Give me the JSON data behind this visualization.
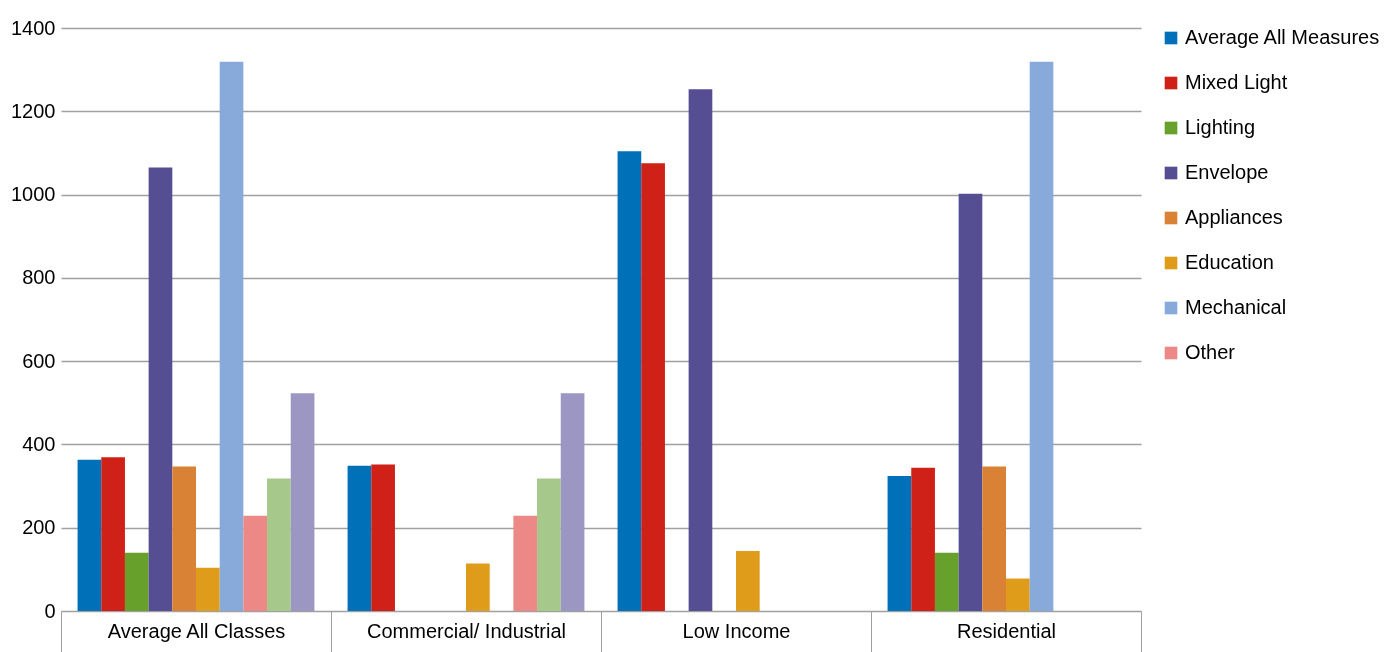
{
  "chart_data": {
    "type": "bar",
    "categories": [
      "Average All Classes",
      "Commercial/ Industrial",
      "Low Income",
      "Residential"
    ],
    "series": [
      {
        "name": "Average All Measures",
        "color": "#0070b8",
        "values": [
          363,
          349,
          1104,
          324
        ]
      },
      {
        "name": "Mixed Light",
        "color": "#cf2118",
        "values": [
          369,
          352,
          1075,
          344
        ]
      },
      {
        "name": "Lighting",
        "color": "#67a02b",
        "values": [
          140,
          null,
          null,
          140
        ]
      },
      {
        "name": "Envelope",
        "color": "#554e93",
        "values": [
          1065,
          null,
          1253,
          1002
        ]
      },
      {
        "name": "Appliances",
        "color": "#d98235",
        "values": [
          347,
          null,
          null,
          347
        ]
      },
      {
        "name": "Education",
        "color": "#df9b1a",
        "values": [
          104,
          114,
          144,
          78
        ]
      },
      {
        "name": "Mechanical",
        "color": "#87aadb",
        "values": [
          1319,
          null,
          null,
          1319
        ]
      },
      {
        "name": "Other",
        "color": "#ec8886",
        "values": [
          229,
          229,
          null,
          null
        ]
      },
      {
        "color": "#a6c98b",
        "values": [
          318,
          318,
          null,
          null
        ]
      },
      {
        "color": "#9c96c2",
        "values": [
          523,
          523,
          null,
          null
        ]
      }
    ],
    "ylim": [
      0,
      1400
    ],
    "yticks": [
      0,
      200,
      400,
      600,
      800,
      1000,
      1200,
      1400
    ],
    "grid": "y",
    "legend": "right"
  }
}
